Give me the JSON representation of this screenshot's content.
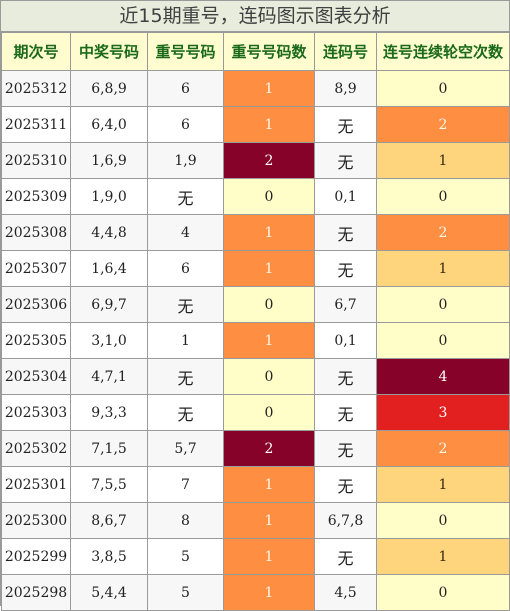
{
  "title": "近15期重号，连码图示图表分析",
  "columns": [
    "期次号",
    "中奖号码",
    "重号号码",
    "重号号码数",
    "连码号",
    "连号连续轮空次数"
  ],
  "colors": {
    "count_0": "#fffdc8",
    "repeat_1": "#fd8e42",
    "repeat_2": "#870228",
    "skip_1": "#fed47d",
    "skip_2": "#fd8e42",
    "skip_3": "#e32020",
    "skip_4": "#870228"
  },
  "rows": [
    {
      "issue": "2025312",
      "numbers": "6,8,9",
      "repeat": "6",
      "repeat_count": "1",
      "consecutive": "8,9",
      "skip": "0"
    },
    {
      "issue": "2025311",
      "numbers": "6,4,0",
      "repeat": "6",
      "repeat_count": "1",
      "consecutive": "无",
      "skip": "2"
    },
    {
      "issue": "2025310",
      "numbers": "1,6,9",
      "repeat": "1,9",
      "repeat_count": "2",
      "consecutive": "无",
      "skip": "1"
    },
    {
      "issue": "2025309",
      "numbers": "1,9,0",
      "repeat": "无",
      "repeat_count": "0",
      "consecutive": "0,1",
      "skip": "0"
    },
    {
      "issue": "2025308",
      "numbers": "4,4,8",
      "repeat": "4",
      "repeat_count": "1",
      "consecutive": "无",
      "skip": "2"
    },
    {
      "issue": "2025307",
      "numbers": "1,6,4",
      "repeat": "6",
      "repeat_count": "1",
      "consecutive": "无",
      "skip": "1"
    },
    {
      "issue": "2025306",
      "numbers": "6,9,7",
      "repeat": "无",
      "repeat_count": "0",
      "consecutive": "6,7",
      "skip": "0"
    },
    {
      "issue": "2025305",
      "numbers": "3,1,0",
      "repeat": "1",
      "repeat_count": "1",
      "consecutive": "0,1",
      "skip": "0"
    },
    {
      "issue": "2025304",
      "numbers": "4,7,1",
      "repeat": "无",
      "repeat_count": "0",
      "consecutive": "无",
      "skip": "4"
    },
    {
      "issue": "2025303",
      "numbers": "9,3,3",
      "repeat": "无",
      "repeat_count": "0",
      "consecutive": "无",
      "skip": "3"
    },
    {
      "issue": "2025302",
      "numbers": "7,1,5",
      "repeat": "5,7",
      "repeat_count": "2",
      "consecutive": "无",
      "skip": "2"
    },
    {
      "issue": "2025301",
      "numbers": "7,5,5",
      "repeat": "7",
      "repeat_count": "1",
      "consecutive": "无",
      "skip": "1"
    },
    {
      "issue": "2025300",
      "numbers": "8,6,7",
      "repeat": "8",
      "repeat_count": "1",
      "consecutive": "6,7,8",
      "skip": "0"
    },
    {
      "issue": "2025299",
      "numbers": "3,8,5",
      "repeat": "5",
      "repeat_count": "1",
      "consecutive": "无",
      "skip": "1"
    },
    {
      "issue": "2025298",
      "numbers": "5,4,4",
      "repeat": "5",
      "repeat_count": "1",
      "consecutive": "4,5",
      "skip": "0"
    }
  ]
}
